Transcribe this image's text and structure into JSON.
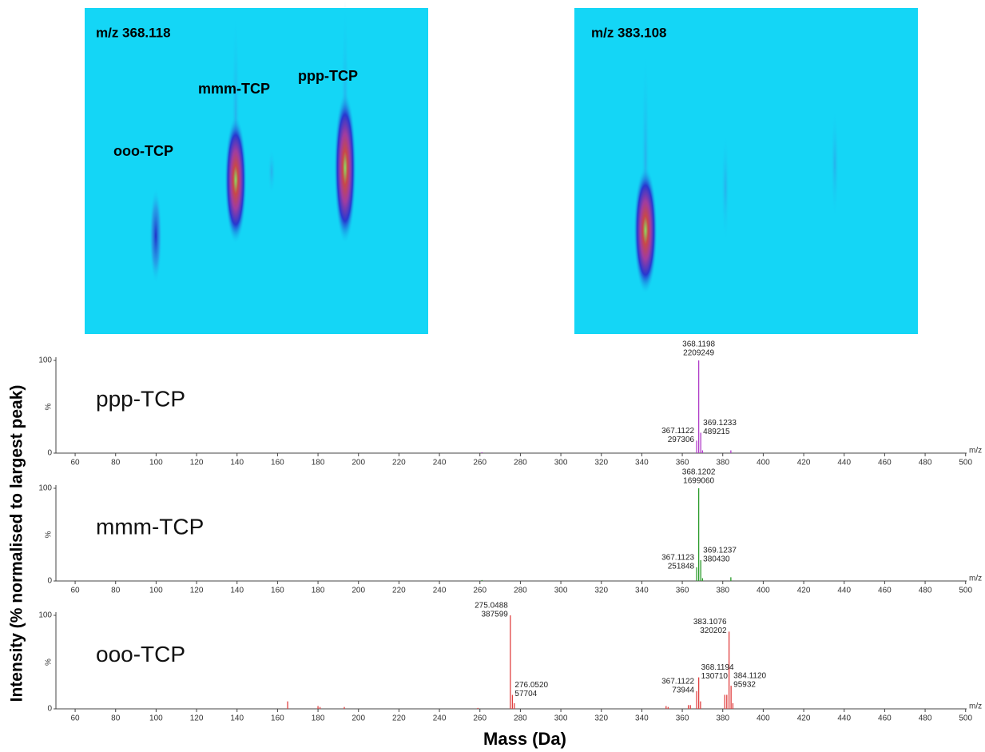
{
  "heatmaps": [
    {
      "title": "m/z 368.118",
      "labels": [
        "ooo-TCP",
        "mmm-TCP",
        "ppp-TCP"
      ]
    },
    {
      "title": "m/z 383.108"
    }
  ],
  "axis_labels": {
    "y": "Intensity (% normalised to largest peak)",
    "x": "Mass (Da)"
  },
  "chart_data": [
    {
      "type": "stem",
      "name": "ppp-TCP",
      "color": "#b03cc8",
      "x": [
        261,
        367.1122,
        368.1198,
        369.1233,
        370,
        384
      ],
      "values": [
        1,
        13.5,
        100,
        22,
        3,
        3
      ],
      "xlim": [
        50.5,
        500.5
      ],
      "xticks": [
        60,
        80,
        100,
        120,
        140,
        160,
        180,
        200,
        220,
        240,
        260,
        280,
        300,
        320,
        340,
        360,
        380,
        400,
        420,
        440,
        460,
        480,
        500
      ],
      "ylim": [
        0,
        100
      ],
      "yticks": [
        0,
        100
      ],
      "ylabel": "%",
      "xunit": "m/z",
      "annotations": [
        {
          "mz": 368.1198,
          "intensity": 2209249
        },
        {
          "mz": 367.1122,
          "intensity": 297306
        },
        {
          "mz": 369.1233,
          "intensity": 489215
        }
      ]
    },
    {
      "type": "stem",
      "name": "mmm-TCP",
      "color": "#2a9a2a",
      "x": [
        261,
        367.1123,
        368.1202,
        369.1237,
        370,
        384
      ],
      "values": [
        1,
        14.8,
        100,
        22.4,
        3,
        4
      ],
      "xlim": [
        50.5,
        500.5
      ],
      "xticks": [
        60,
        80,
        100,
        120,
        140,
        160,
        180,
        200,
        220,
        240,
        260,
        280,
        300,
        320,
        340,
        360,
        380,
        400,
        420,
        440,
        460,
        480,
        500
      ],
      "ylim": [
        0,
        100
      ],
      "yticks": [
        0,
        100
      ],
      "ylabel": "%",
      "xunit": "m/z",
      "annotations": [
        {
          "mz": 368.1202,
          "intensity": 1699060
        },
        {
          "mz": 367.1123,
          "intensity": 251848
        },
        {
          "mz": 369.1237,
          "intensity": 380430
        }
      ]
    },
    {
      "type": "stem",
      "name": "ooo-TCP",
      "color": "#e04040",
      "x": [
        165,
        180,
        181,
        193,
        259,
        275.0488,
        276.052,
        277,
        352,
        353,
        363,
        364,
        367.1122,
        368.1194,
        369,
        381,
        382,
        383.1076,
        384.112,
        385
      ],
      "values": [
        8,
        3,
        2,
        2,
        1,
        100,
        14.9,
        6,
        3,
        2,
        4,
        4,
        19,
        33.7,
        8,
        15,
        15,
        82.6,
        24.7,
        6
      ],
      "xlim": [
        50.5,
        500.5
      ],
      "xticks": [
        60,
        80,
        100,
        120,
        140,
        160,
        180,
        200,
        220,
        240,
        260,
        280,
        300,
        320,
        340,
        360,
        380,
        400,
        420,
        440,
        460,
        480,
        500
      ],
      "ylim": [
        0,
        100
      ],
      "yticks": [
        0,
        100
      ],
      "ylabel": "%",
      "xunit": "m/z",
      "annotations": [
        {
          "mz": 275.0488,
          "intensity": 387599
        },
        {
          "mz": {
            "value": 276.052,
            "label": "276.0520"
          },
          "intensity": 57704
        },
        {
          "mz": 367.1122,
          "intensity": 73944
        },
        {
          "mz": 368.1194,
          "intensity": 130710
        },
        {
          "mz": 383.1076,
          "intensity": 320202
        },
        {
          "mz": {
            "value": 384.112,
            "label": "384.1120"
          },
          "intensity": 95932
        }
      ]
    }
  ]
}
